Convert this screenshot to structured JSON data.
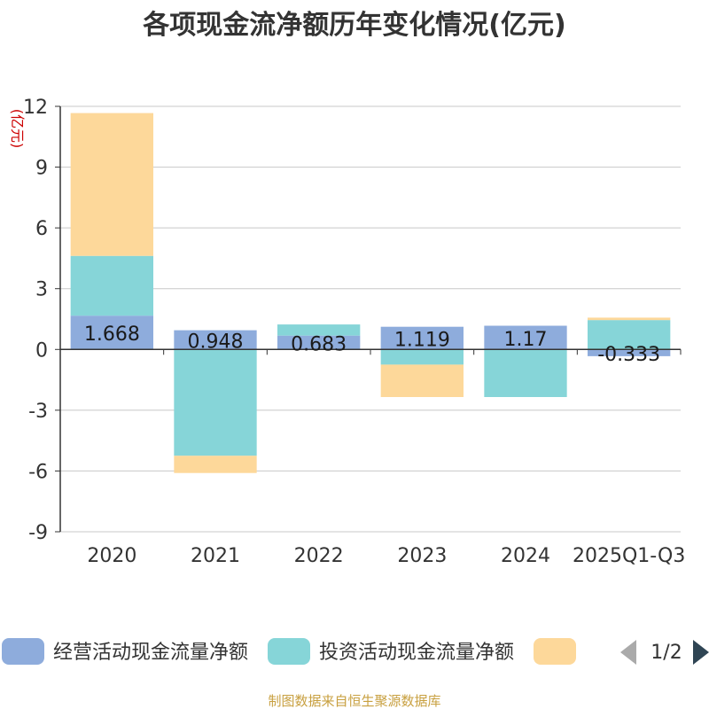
{
  "chart_data": {
    "type": "bar",
    "stacked": true,
    "title": "各项现金流净额历年变化情况(亿元)",
    "ylabel": "(亿元)",
    "xlabel": "",
    "ylim": [
      -9,
      12
    ],
    "yticks": [
      12,
      9,
      6,
      3,
      0,
      -3,
      -6,
      -9
    ],
    "grid": true,
    "categories": [
      "2020",
      "2021",
      "2022",
      "2023",
      "2024",
      "2025Q1-Q3"
    ],
    "series": [
      {
        "name": "经营活动现金流量净额",
        "color": "#8eacdc",
        "values": [
          1.668,
          0.948,
          0.683,
          1.119,
          1.17,
          -0.333
        ],
        "labels": [
          "1.668",
          "0.948",
          "0.683",
          "1.119",
          "1.17",
          "-0.333"
        ]
      },
      {
        "name": "投资活动现金流量净额",
        "color": "#86d5d8",
        "values": [
          2.95,
          -5.25,
          0.55,
          -0.75,
          -2.35,
          1.45
        ],
        "labels": null
      },
      {
        "name": "",
        "color": "#fdd89a",
        "values": [
          7.05,
          -0.85,
          0.0,
          -1.6,
          0.0,
          0.12
        ],
        "labels": null
      }
    ],
    "legend": {
      "placement": "bottom",
      "page": "1/2"
    },
    "source": "制图数据来自恒生聚源数据库"
  },
  "colors": {
    "title": "#333333",
    "axis_title": "#cc0000",
    "tick": "#333333",
    "grid": "#c8c8c8",
    "axis": "#333333",
    "label": "#1a1a1a",
    "pager_inactive": "#aaaaaa",
    "pager_active": "#2f4554",
    "source": "#c8a040"
  }
}
